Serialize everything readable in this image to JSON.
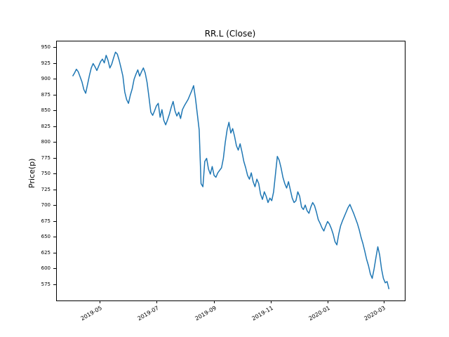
{
  "figure": {
    "background": "#ffffff"
  },
  "chart_data": {
    "type": "line",
    "title": "RR.L (Close)",
    "xlabel": "",
    "ylabel": "Price(p)",
    "line_color": "#1f77b4",
    "ylim": [
      550,
      960
    ],
    "grid": false,
    "legend": "none",
    "y_ticks": [
      575,
      600,
      625,
      650,
      675,
      700,
      725,
      750,
      775,
      800,
      825,
      850,
      875,
      900,
      925,
      950
    ],
    "x_ticks": [
      {
        "label": "2019-05",
        "pos": 0.088
      },
      {
        "label": "2019-07",
        "pos": 0.268
      },
      {
        "label": "2019-09",
        "pos": 0.45
      },
      {
        "label": "2019-11",
        "pos": 0.629
      },
      {
        "label": "2020-01",
        "pos": 0.809
      },
      {
        "label": "2020-03",
        "pos": 0.985
      }
    ],
    "series_name": "Close",
    "values": [
      905,
      910,
      916,
      912,
      904,
      896,
      884,
      878,
      892,
      906,
      918,
      925,
      920,
      914,
      921,
      928,
      932,
      926,
      938,
      930,
      918,
      924,
      934,
      943,
      940,
      930,
      918,
      905,
      880,
      868,
      862,
      875,
      885,
      900,
      908,
      915,
      905,
      912,
      918,
      910,
      895,
      872,
      848,
      843,
      850,
      858,
      862,
      840,
      852,
      835,
      828,
      836,
      845,
      856,
      865,
      850,
      842,
      848,
      838,
      852,
      858,
      863,
      868,
      875,
      882,
      890,
      870,
      845,
      820,
      735,
      730,
      770,
      775,
      758,
      750,
      762,
      748,
      745,
      752,
      756,
      760,
      775,
      800,
      820,
      832,
      815,
      822,
      810,
      795,
      788,
      798,
      785,
      770,
      760,
      748,
      742,
      752,
      738,
      730,
      742,
      735,
      718,
      710,
      722,
      715,
      705,
      712,
      708,
      722,
      750,
      778,
      772,
      760,
      745,
      735,
      728,
      738,
      725,
      712,
      705,
      708,
      722,
      715,
      698,
      694,
      701,
      692,
      688,
      698,
      705,
      700,
      690,
      678,
      672,
      665,
      660,
      668,
      675,
      671,
      664,
      655,
      643,
      638,
      655,
      668,
      676,
      683,
      690,
      697,
      702,
      695,
      688,
      680,
      672,
      662,
      650,
      640,
      628,
      615,
      605,
      592,
      585,
      600,
      618,
      635,
      622,
      600,
      585,
      578,
      580,
      568
    ]
  }
}
